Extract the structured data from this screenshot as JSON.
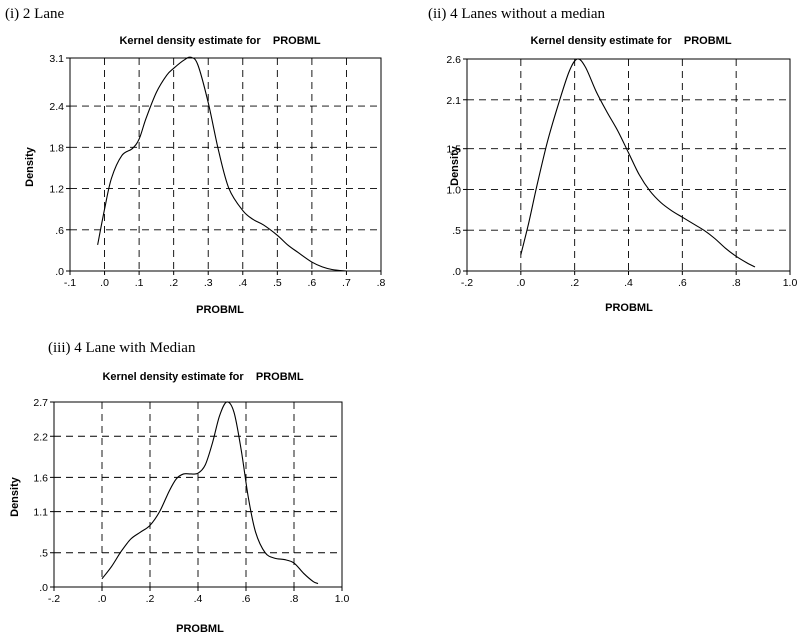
{
  "chart_data": [
    {
      "type": "line",
      "caption": "(i) 2 Lane",
      "title": "Kernel density estimate for    PROBML",
      "xlabel": "PROBML",
      "ylabel": "Density",
      "xlim": [
        -0.1,
        0.8
      ],
      "ylim": [
        0,
        3.1
      ],
      "xticks": [
        -0.1,
        0.0,
        0.1,
        0.2,
        0.3,
        0.4,
        0.5,
        0.6,
        0.7,
        0.8
      ],
      "xtick_labels": [
        "-.1",
        ".0",
        ".1",
        ".2",
        ".3",
        ".4",
        ".5",
        ".6",
        ".7",
        ".8"
      ],
      "yticks": [
        0,
        0.6,
        1.2,
        1.8,
        2.4,
        3.1
      ],
      "ytick_labels": [
        ".0",
        ".6",
        "1.2",
        "1.8",
        "2.4",
        "3.1"
      ],
      "xgrid": [
        0.0,
        0.1,
        0.2,
        0.3,
        0.4,
        0.5,
        0.6,
        0.7
      ],
      "ygrid": [
        0.6,
        1.2,
        1.8,
        2.4
      ],
      "grid": true,
      "series": [
        {
          "x": [
            -0.02,
            0.0,
            0.02,
            0.05,
            0.08,
            0.1,
            0.12,
            0.15,
            0.18,
            0.2,
            0.23,
            0.25,
            0.27,
            0.3,
            0.33,
            0.36,
            0.4,
            0.43,
            0.46,
            0.5,
            0.53,
            0.56,
            0.6,
            0.63,
            0.66,
            0.7
          ],
          "y": [
            0.38,
            0.9,
            1.35,
            1.68,
            1.78,
            1.92,
            2.22,
            2.6,
            2.85,
            2.95,
            3.07,
            3.11,
            3.0,
            2.45,
            1.75,
            1.2,
            0.88,
            0.75,
            0.67,
            0.52,
            0.38,
            0.27,
            0.13,
            0.06,
            0.02,
            0.0
          ]
        }
      ]
    },
    {
      "type": "line",
      "caption": "(ii) 4 Lanes without a median",
      "title": "Kernel density estimate for    PROBML",
      "xlabel": "PROBML",
      "ylabel": "Density",
      "xlim": [
        -0.2,
        1.0
      ],
      "ylim": [
        0,
        2.6
      ],
      "xticks": [
        -0.2,
        0.0,
        0.2,
        0.4,
        0.6,
        0.8,
        1.0
      ],
      "xtick_labels": [
        "-.2",
        ".0",
        ".2",
        ".4",
        ".6",
        ".8",
        "1.0"
      ],
      "yticks": [
        0,
        0.5,
        1.0,
        1.5,
        2.1,
        2.6
      ],
      "ytick_labels": [
        ".0",
        ".5",
        "1.0",
        "1.5",
        "2.1",
        "2.6"
      ],
      "xgrid": [
        0.0,
        0.2,
        0.4,
        0.6,
        0.8
      ],
      "ygrid": [
        0.5,
        1.0,
        1.5,
        2.1
      ],
      "grid": true,
      "series": [
        {
          "x": [
            0.0,
            0.03,
            0.06,
            0.1,
            0.14,
            0.18,
            0.21,
            0.24,
            0.28,
            0.32,
            0.36,
            0.4,
            0.44,
            0.48,
            0.52,
            0.56,
            0.6,
            0.64,
            0.68,
            0.72,
            0.76,
            0.8,
            0.84,
            0.87
          ],
          "y": [
            0.2,
            0.6,
            1.05,
            1.6,
            2.05,
            2.45,
            2.6,
            2.5,
            2.2,
            1.95,
            1.72,
            1.45,
            1.18,
            0.98,
            0.84,
            0.74,
            0.66,
            0.58,
            0.5,
            0.4,
            0.28,
            0.18,
            0.1,
            0.05
          ]
        }
      ]
    },
    {
      "type": "line",
      "caption": "(iii) 4 Lane with Median",
      "title": "Kernel density estimate for    PROBML",
      "xlabel": "PROBML",
      "ylabel": "Density",
      "xlim": [
        -0.2,
        1.0
      ],
      "ylim": [
        0,
        2.7
      ],
      "xticks": [
        -0.2,
        0.0,
        0.2,
        0.4,
        0.6,
        0.8,
        1.0
      ],
      "xtick_labels": [
        "-.2",
        ".0",
        ".2",
        ".4",
        ".6",
        ".8",
        "1.0"
      ],
      "yticks": [
        0,
        0.5,
        1.1,
        1.6,
        2.2,
        2.7
      ],
      "ytick_labels": [
        ".0",
        ".5",
        "1.1",
        "1.6",
        "2.2",
        "2.7"
      ],
      "xgrid": [
        0.0,
        0.2,
        0.4,
        0.6,
        0.8
      ],
      "ygrid": [
        0.5,
        1.1,
        1.6,
        2.2
      ],
      "grid": true,
      "series": [
        {
          "x": [
            0.0,
            0.04,
            0.08,
            0.12,
            0.16,
            0.2,
            0.24,
            0.28,
            0.31,
            0.34,
            0.37,
            0.4,
            0.43,
            0.46,
            0.49,
            0.52,
            0.55,
            0.58,
            0.61,
            0.64,
            0.68,
            0.72,
            0.76,
            0.8,
            0.84,
            0.88,
            0.9
          ],
          "y": [
            0.12,
            0.3,
            0.52,
            0.7,
            0.8,
            0.9,
            1.1,
            1.4,
            1.58,
            1.65,
            1.65,
            1.66,
            1.78,
            2.1,
            2.5,
            2.7,
            2.55,
            2.0,
            1.3,
            0.8,
            0.5,
            0.42,
            0.4,
            0.35,
            0.2,
            0.08,
            0.05
          ]
        }
      ]
    }
  ]
}
